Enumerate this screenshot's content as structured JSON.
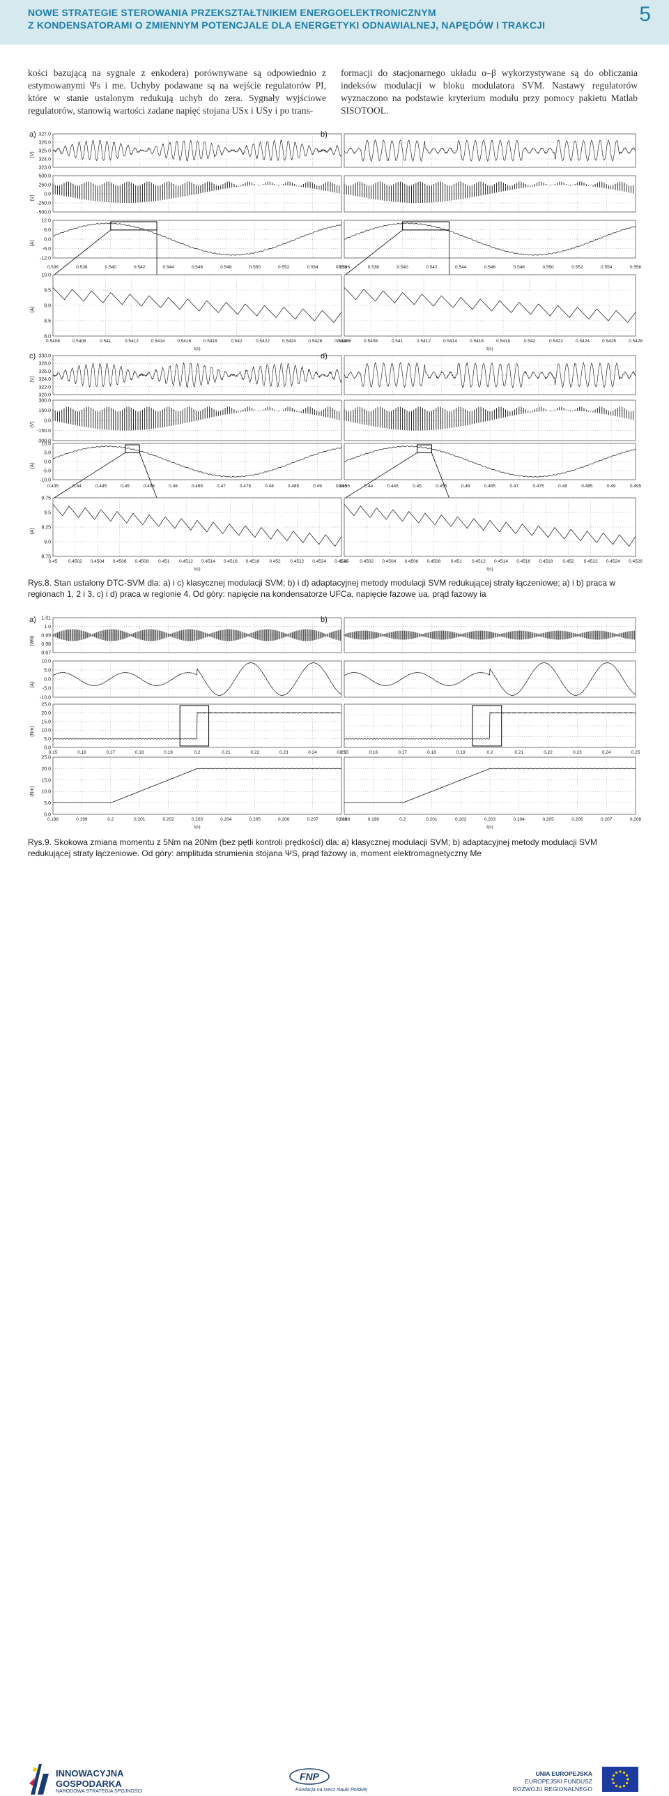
{
  "header": {
    "title_line1": "NOWE STRATEGIE STEROWANIA PRZEKSZTAŁTNIKIEM ENERGOELEKTRONICZNYM",
    "title_line2": "Z KONDENSATORAMI O ZMIENNYM POTENCJALE DLA ENERGETYKI ODNAWIALNEJ, NAPĘDÓW I TRAKCJI",
    "page_number": "5"
  },
  "body": {
    "col1": "kości bazującą na sygnale z enkodera) porównywane są odpowiednio z estymowanymi Ψs i me. Uchyby podawane są na wejście regulatorów PI, które w stanie ustalonym redukują uchyb do zera. Sygnały wyjściowe regulatorów, stanowią wartości zadane napięć stojana USx i USy i po trans-",
    "col2": "formacji do stacjonarnego układu α–β wykorzystywane są do obliczania indeksów modulacji w bloku modulatora SVM. Nastawy regulatorów wyznaczono na podstawie kryterium modułu przy pomocy pakietu Matlab SISOTOOL."
  },
  "fig8": {
    "caption": "Rys.8. Stan ustalony DTC-SVM dla: a) i c) klasycznej modulacji SVM; b) i d) adaptacyjnej metody modulacji SVM redukującej straty łączeniowe; a) i b) praca w regionach 1, 2 i 3, c) i d) praca w regionie 4. Od góry: napięcie na kondensatorze UFCa, napięcie fazowe ua, prąd fazowy ia",
    "xlabel": "t(s)",
    "panels": [
      {
        "label": "a)",
        "units": [
          "(V)",
          "(V)",
          "(A)"
        ],
        "yticks": [
          [
            "327.0",
            "326.0",
            "325.0",
            "324.0",
            "323.0"
          ],
          [
            "500.0",
            "250.0",
            "0.0",
            "-250.0",
            "-500.0"
          ],
          [
            "12.0",
            "6.0",
            "0.0",
            "-6.0",
            "-12.0"
          ]
        ],
        "xticks": [
          "0.536",
          "0.538",
          "0.540",
          "0.542",
          "0.544",
          "0.546",
          "0.548",
          "0.550",
          "0.552",
          "0.554",
          "0.556"
        ],
        "zoom_units": "(A)",
        "zoom_yticks": [
          "10.0",
          "9.5",
          "9.0",
          "8.5",
          "8.0"
        ],
        "zoom_xticks": [
          "0.5406",
          "0.5408",
          "0.541",
          "0.5412",
          "0.5414",
          "0.5416",
          "0.5418",
          "0.542",
          "0.5422",
          "0.5424",
          "0.5426",
          "0.5428"
        ]
      },
      {
        "label": "b)",
        "xticks": [
          "0.536",
          "0.538",
          "0.540",
          "0.542",
          "0.544",
          "0.546",
          "0.548",
          "0.550",
          "0.552",
          "0.554",
          "0.556"
        ],
        "zoom_xticks": [
          "0.5406",
          "0.5408",
          "0.541",
          "0.5412",
          "0.5414",
          "0.5416",
          "0.5418",
          "0.542",
          "0.5422",
          "0.5424",
          "0.5426",
          "0.5428"
        ]
      },
      {
        "label": "c)",
        "units": [
          "(V)",
          "(V)",
          "(A)"
        ],
        "yticks": [
          [
            "330.0",
            "328.0",
            "326.0",
            "324.0",
            "322.0",
            "320.0"
          ],
          [
            "300.0",
            "150.0",
            "0.0",
            "-150.0",
            "-300.0"
          ],
          [
            "10.0",
            "5.0",
            "0.0",
            "-5.0",
            "-10.0"
          ]
        ],
        "xticks": [
          "0.435",
          "0.44",
          "0.445",
          "0.45",
          "0.455",
          "0.46",
          "0.465",
          "0.47",
          "0.475",
          "0.48",
          "0.485",
          "0.49",
          "0.495"
        ],
        "zoom_units": "(A)",
        "zoom_yticks": [
          "9.75",
          "9.5",
          "9.25",
          "9.0",
          "8.75"
        ],
        "zoom_xticks": [
          "0.45",
          "0.4502",
          "0.4504",
          "0.4506",
          "0.4508",
          "0.451",
          "0.4512",
          "0.4514",
          "0.4516",
          "0.4518",
          "0.452",
          "0.4522",
          "0.4524",
          "0.4526"
        ]
      },
      {
        "label": "d)",
        "xticks": [
          "0.435",
          "0.44",
          "0.445",
          "0.45",
          "0.455",
          "0.46",
          "0.465",
          "0.47",
          "0.475",
          "0.48",
          "0.485",
          "0.49",
          "0.495"
        ],
        "zoom_xticks": [
          "0.45",
          "0.4502",
          "0.4504",
          "0.4506",
          "0.4508",
          "0.451",
          "0.4512",
          "0.4514",
          "0.4516",
          "0.4518",
          "0.452",
          "0.4522",
          "0.4524",
          "0.4526"
        ]
      }
    ]
  },
  "fig9": {
    "caption": "Rys.9. Skokowa zmiana momentu z 5Nm na 20Nm (bez pętli kontroli prędkości) dla: a) klasycznej modulacji SVM; b) adaptacyjnej metody modulacji SVM redukującej straty łączeniowe. Od góry: amplituda strumienia stojana ΨS, prąd fazowy ia, moment elektromagnetyczny Me",
    "xlabel": "t(s)",
    "panels": [
      {
        "label": "a)",
        "units": [
          "(Wb)",
          "(A)",
          "(Nm)"
        ],
        "yticks": [
          [
            "1.01",
            "1.0",
            "0.99",
            "0.98",
            "0.97"
          ],
          [
            "10.0",
            "5.0",
            "0.0",
            "-5.0",
            "-10.0"
          ],
          [
            "25.0",
            "20.0",
            "15.0",
            "10.0",
            "5.0",
            "0.0"
          ]
        ],
        "xticks": [
          "0.15",
          "0.16",
          "0.17",
          "0.18",
          "0.19",
          "0.2",
          "0.21",
          "0.22",
          "0.23",
          "0.24",
          "0.25"
        ],
        "zoom_units": "(Nm)",
        "zoom_yticks": [
          "25.0",
          "20.0",
          "15.0",
          "10.0",
          "5.0",
          "0.0"
        ],
        "zoom_xticks": [
          "0.198",
          "0.199",
          "0.2",
          "0.201",
          "0.202",
          "0.203",
          "0.204",
          "0.205",
          "0.206",
          "0.207",
          "0.208"
        ]
      },
      {
        "label": "b)",
        "xticks": [
          "0.15",
          "0.16",
          "0.17",
          "0.18",
          "0.19",
          "0.2",
          "0.21",
          "0.22",
          "0.23",
          "0.24",
          "0.25"
        ],
        "zoom_xticks": [
          "0.198",
          "0.199",
          "0.2",
          "0.201",
          "0.202",
          "0.203",
          "0.204",
          "0.205",
          "0.206",
          "0.207",
          "0.208"
        ]
      }
    ]
  },
  "footer": {
    "ig_line1": "INNOWACYJNA",
    "ig_line2": "GOSPODARKA",
    "ig_line3": "NARODOWA STRATEGIA SPÓJNOŚCI",
    "fnp_logo": "FNP",
    "fnp_sub": "Fundacja na rzecz Nauki Polskiej",
    "ue_line1": "UNIA EUROPEJSKA",
    "ue_line2": "EUROPEJSKI FUNDUSZ",
    "ue_line3": "ROZWOJU REGIONALNEGO",
    "colors": {
      "header_bg": "#d5e9ef",
      "header_text": "#1f7fa8",
      "logo_blue": "#1b3b6e",
      "eu_yellow": "#f5d300"
    }
  }
}
